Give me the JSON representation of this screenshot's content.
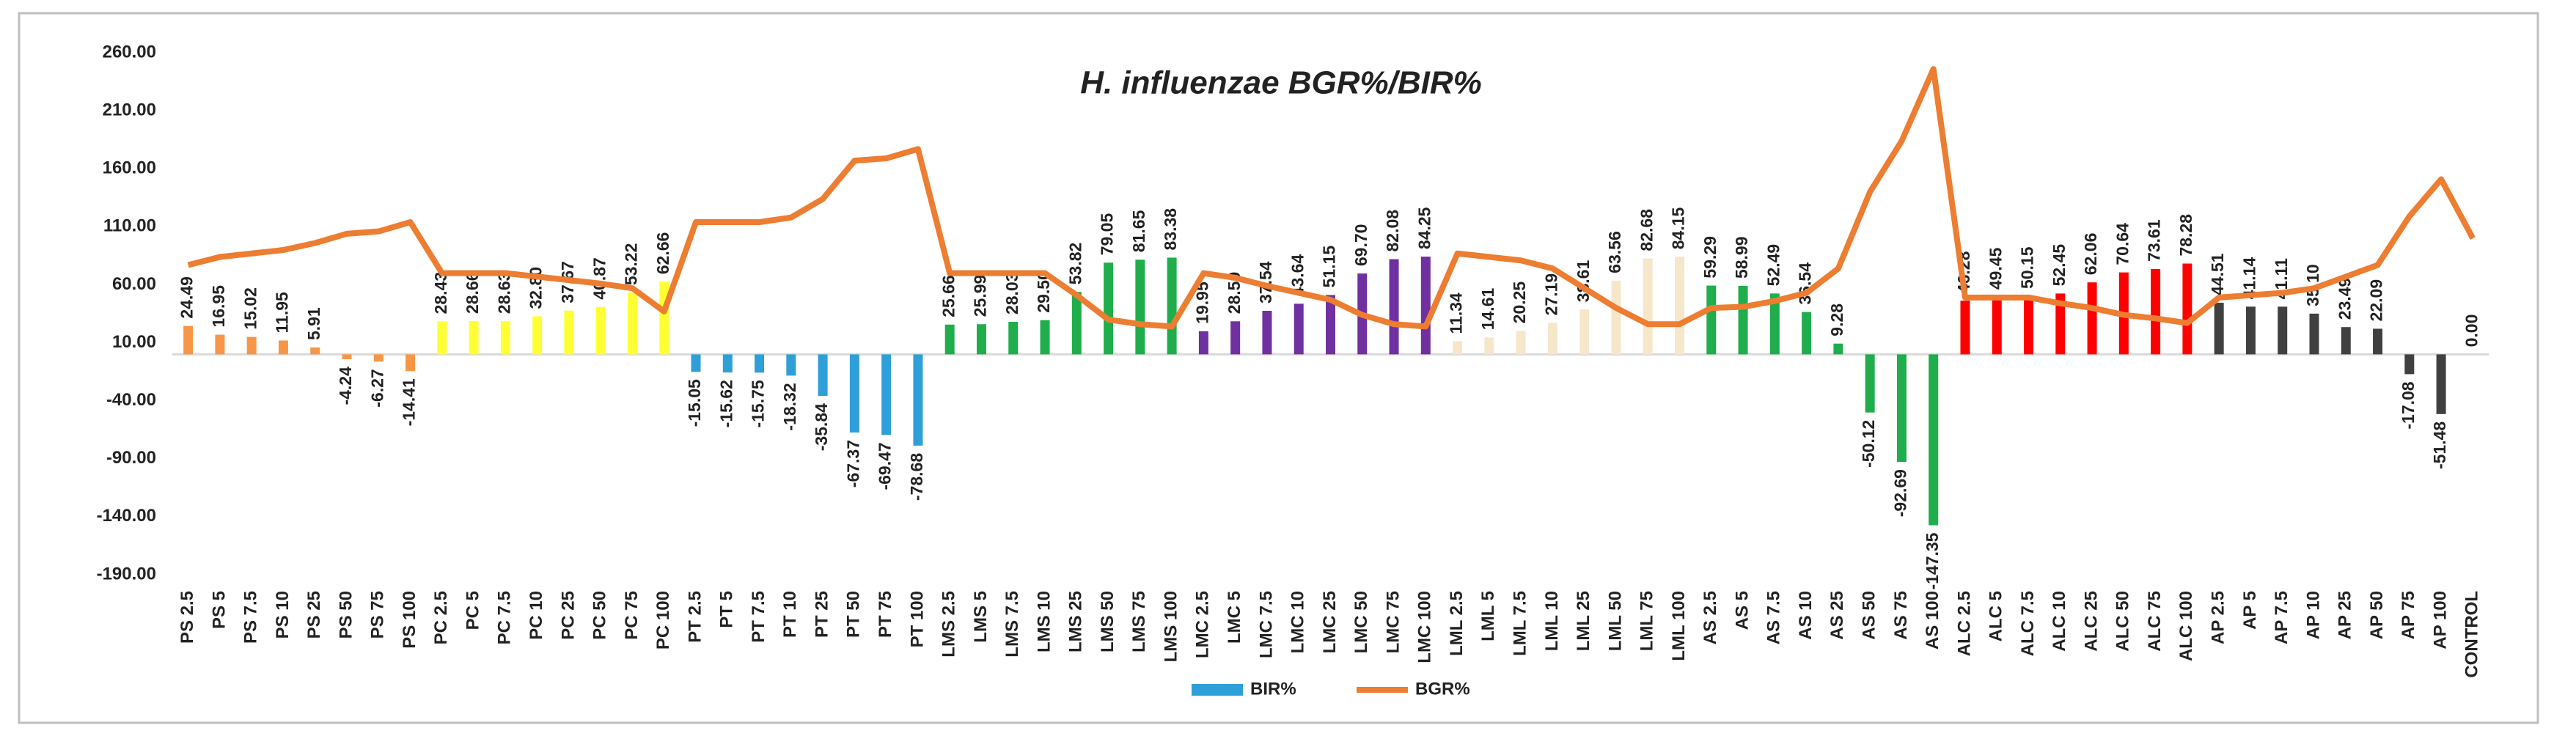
{
  "chart_data": {
    "type": "combo",
    "title": "H. influenzae BGR%/BIR%",
    "categories": [
      "PS 2.5",
      "PS 5",
      "PS 7.5",
      "PS 10",
      "PS 25",
      "PS 50",
      "PS 75",
      "PS 100",
      "PC 2.5",
      "PC 5",
      "PC 7.5",
      "PC 10",
      "PC 25",
      "PC 50",
      "PC 75",
      "PC 100",
      "PT 2.5",
      "PT 5",
      "PT 7.5",
      "PT 10",
      "PT 25",
      "PT 50",
      "PT 75",
      "PT 100",
      "LMS 2.5",
      "LMS 5",
      "LMS 7.5",
      "LMS 10",
      "LMS 25",
      "LMS 50",
      "LMS 75",
      "LMS 100",
      "LMC 2.5",
      "LMC 5",
      "LMC 7.5",
      "LMC 10",
      "LMC 25",
      "LMC 50",
      "LMC 75",
      "LMC 100",
      "LML 2.5",
      "LML 5",
      "LML 7.5",
      "LML 10",
      "LML 25",
      "LML 50",
      "LML 75",
      "LML 100",
      "AS 2.5",
      "AS 5",
      "AS 7.5",
      "AS 10",
      "AS 25",
      "AS 50",
      "AS 75",
      "AS 100",
      "ALC 2.5",
      "ALC 5",
      "ALC 7.5",
      "ALC 10",
      "ALC 25",
      "ALC 50",
      "ALC 75",
      "ALC 100",
      "AP 2.5",
      "AP 5",
      "AP 7.5",
      "AP 10",
      "AP 25",
      "AP 50",
      "AP 75",
      "AP 100",
      "CONTROL"
    ],
    "series": [
      {
        "name": "BIR%",
        "type": "bar",
        "color": "#2e9fd9",
        "colors": [
          "#f79646",
          "#f79646",
          "#f79646",
          "#f79646",
          "#f79646",
          "#f79646",
          "#f79646",
          "#f79646",
          "#ffff33",
          "#ffff33",
          "#ffff33",
          "#ffff33",
          "#ffff33",
          "#ffff33",
          "#ffff33",
          "#ffff33",
          "#2e9fd9",
          "#2e9fd9",
          "#2e9fd9",
          "#2e9fd9",
          "#2e9fd9",
          "#2e9fd9",
          "#2e9fd9",
          "#2e9fd9",
          "#1fae4b",
          "#1fae4b",
          "#1fae4b",
          "#1fae4b",
          "#1fae4b",
          "#1fae4b",
          "#1fae4b",
          "#1fae4b",
          "#7030a0",
          "#7030a0",
          "#7030a0",
          "#7030a0",
          "#7030a0",
          "#7030a0",
          "#7030a0",
          "#7030a0",
          "#f6e7cb",
          "#f6e7cb",
          "#f6e7cb",
          "#f6e7cb",
          "#f6e7cb",
          "#f6e7cb",
          "#f6e7cb",
          "#f6e7cb",
          "#1fae4b",
          "#1fae4b",
          "#1fae4b",
          "#1fae4b",
          "#1fae4b",
          "#1fae4b",
          "#1fae4b",
          "#1fae4b",
          "#ff0000",
          "#ff0000",
          "#ff0000",
          "#ff0000",
          "#ff0000",
          "#ff0000",
          "#ff0000",
          "#ff0000",
          "#404040",
          "#404040",
          "#404040",
          "#404040",
          "#404040",
          "#404040",
          "#404040",
          "#404040",
          "#2e9fd9"
        ],
        "values": [
          24.49,
          16.95,
          15.02,
          11.95,
          5.91,
          -4.24,
          -6.27,
          -14.41,
          28.43,
          28.66,
          28.63,
          32.8,
          37.67,
          40.87,
          53.22,
          62.66,
          -15.05,
          -15.62,
          -15.75,
          -18.32,
          -35.84,
          -67.37,
          -69.47,
          -78.68,
          25.66,
          25.99,
          28.03,
          29.5,
          53.82,
          79.05,
          81.65,
          83.38,
          19.95,
          28.5,
          37.54,
          43.64,
          51.15,
          69.7,
          82.08,
          84.25,
          11.34,
          14.61,
          20.25,
          27.19,
          38.61,
          63.56,
          82.68,
          84.15,
          59.29,
          58.99,
          52.49,
          36.54,
          9.28,
          -50.12,
          -92.69,
          -147.35,
          46.28,
          49.45,
          50.15,
          52.45,
          62.06,
          70.64,
          73.61,
          78.28,
          44.51,
          41.14,
          41.11,
          35.1,
          23.49,
          22.09,
          -17.08,
          -51.48,
          0
        ],
        "value_labels": [
          "24.49",
          "16.95",
          "15.02",
          "11.95",
          "5.91",
          "-4.24",
          "-6.27",
          "-14.41",
          "28.43",
          "28.66",
          "28.63",
          "32.80",
          "37.67",
          "40.87",
          "53.22",
          "62.66",
          "-15.05",
          "-15.62",
          "-15.75",
          "-18.32",
          "-35.84",
          "-67.37",
          "-69.47",
          "-78.68",
          "25.66",
          "25.99",
          "28.03",
          "29.50",
          "53.82",
          "79.05",
          "81.65",
          "83.38",
          "19.95",
          "28.50",
          "37.54",
          "43.64",
          "51.15",
          "69.70",
          "82.08",
          "84.25",
          "11.34",
          "14.61",
          "20.25",
          "27.19",
          "38.61",
          "63.56",
          "82.68",
          "84.15",
          "59.29",
          "58.99",
          "52.49",
          "36.54",
          "9.28",
          "-50.12",
          "-92.69",
          "-147.35",
          "46.28",
          "49.45",
          "50.15",
          "52.45",
          "62.06",
          "70.64",
          "73.61",
          "78.28",
          "44.51",
          "41.14",
          "41.11",
          "35.10",
          "23.49",
          "22.09",
          "-17.08",
          "-51.48",
          "0.00"
        ]
      },
      {
        "name": "BGR%",
        "type": "line",
        "color": "#ed7d31",
        "values": [
          77,
          84,
          87,
          90,
          96,
          104,
          106,
          114,
          70,
          70,
          70,
          67,
          64,
          61,
          57,
          37,
          114,
          114,
          114,
          118,
          134,
          167,
          169,
          177,
          70,
          70,
          70,
          70,
          51,
          30,
          26,
          24,
          70,
          66,
          59,
          53,
          47,
          34,
          26,
          24,
          87,
          84,
          81,
          74,
          57,
          40,
          26,
          26,
          40,
          41,
          46,
          53,
          74,
          140,
          184,
          246,
          49,
          49,
          49,
          44,
          40,
          34,
          31,
          27,
          49,
          51,
          53,
          57,
          67,
          77,
          119,
          151,
          100
        ]
      }
    ],
    "ylim": [
      -190,
      260
    ],
    "yticks": [
      {
        "value": -190,
        "label": "-190.00"
      },
      {
        "value": -140,
        "label": "-140.00"
      },
      {
        "value": -90,
        "label": "-90.00"
      },
      {
        "value": -40,
        "label": "-40.00"
      },
      {
        "value": 10,
        "label": "10.00"
      },
      {
        "value": 60,
        "label": "60.00"
      },
      {
        "value": 110,
        "label": "110.00"
      },
      {
        "value": 160,
        "label": "160.00"
      },
      {
        "value": 210,
        "label": "210.00"
      },
      {
        "value": 260,
        "label": "260.00"
      }
    ],
    "grid": false
  }
}
